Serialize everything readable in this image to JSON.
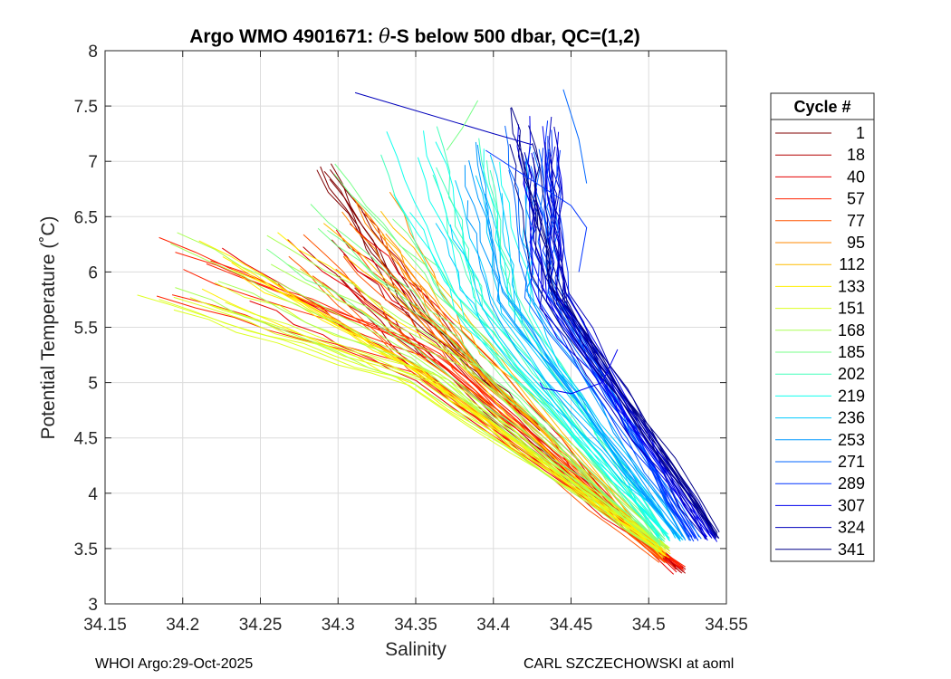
{
  "chart_data": {
    "type": "line",
    "title_prefix": "Argo WMO 4901671: ",
    "title_theta": "θ",
    "title_suffix": "-S below 500 dbar,  QC=(1,2)",
    "xlabel": "Salinity",
    "ylabel": "Potential Temperature (˚C)",
    "xlim": [
      34.15,
      34.55
    ],
    "ylim": [
      3,
      8
    ],
    "xticks": [
      "34.15",
      "34.2",
      "34.25",
      "34.3",
      "34.35",
      "34.4",
      "34.45",
      "34.5",
      "34.55"
    ],
    "xtick_values": [
      34.15,
      34.2,
      34.25,
      34.3,
      34.35,
      34.4,
      34.45,
      34.5,
      34.55
    ],
    "yticks": [
      "3",
      "3.5",
      "4",
      "4.5",
      "5",
      "5.5",
      "6",
      "6.5",
      "7",
      "7.5",
      "8"
    ],
    "ytick_values": [
      3,
      3.5,
      4,
      4.5,
      5,
      5.5,
      6,
      6.5,
      7,
      7.5,
      8
    ],
    "grid": true,
    "legend_title": "Cycle #",
    "legend_position": "right-outside",
    "legend": [
      {
        "label": "1",
        "color": "#800000"
      },
      {
        "label": "18",
        "color": "#b30000"
      },
      {
        "label": "40",
        "color": "#e60000"
      },
      {
        "label": "57",
        "color": "#ff2200"
      },
      {
        "label": "77",
        "color": "#ff5500"
      },
      {
        "label": "95",
        "color": "#ff8800"
      },
      {
        "label": "112",
        "color": "#ffbb00"
      },
      {
        "label": "133",
        "color": "#ffee00"
      },
      {
        "label": "151",
        "color": "#ddff22"
      },
      {
        "label": "168",
        "color": "#aaff55"
      },
      {
        "label": "185",
        "color": "#77ff88"
      },
      {
        "label": "202",
        "color": "#44ffbb"
      },
      {
        "label": "219",
        "color": "#11ffee"
      },
      {
        "label": "236",
        "color": "#00ccff"
      },
      {
        "label": "253",
        "color": "#0099ff"
      },
      {
        "label": "271",
        "color": "#0066ff"
      },
      {
        "label": "289",
        "color": "#0033ff"
      },
      {
        "label": "307",
        "color": "#0000ee"
      },
      {
        "label": "324",
        "color": "#0000bb"
      },
      {
        "label": "341",
        "color": "#000088"
      }
    ],
    "profile_groups": [
      {
        "cycle": "1",
        "color": "#800000",
        "count": 6,
        "top": [
          34.29,
          6.9
        ],
        "mid": [
          34.35,
          5.6
        ],
        "bottom": [
          34.43,
          4.6
        ],
        "spread_s": 0.006,
        "spread_t": 0.08
      },
      {
        "cycle": "18",
        "color": "#b30000",
        "count": 6,
        "top": [
          34.3,
          6.2
        ],
        "mid": [
          34.36,
          5.3
        ],
        "bottom": [
          34.52,
          3.3
        ],
        "spread_s": 0.04,
        "spread_t": 0.4
      },
      {
        "cycle": "40",
        "color": "#e60000",
        "count": 7,
        "top": [
          34.27,
          6.1
        ],
        "mid": [
          34.36,
          5.2
        ],
        "bottom": [
          34.52,
          3.3
        ],
        "spread_s": 0.05,
        "spread_t": 0.4
      },
      {
        "cycle": "57",
        "color": "#ff2200",
        "count": 7,
        "top": [
          34.2,
          6.0
        ],
        "mid": [
          34.36,
          5.2
        ],
        "bottom": [
          34.52,
          3.35
        ],
        "spread_s": 0.03,
        "spread_t": 0.35
      },
      {
        "cycle": "77",
        "color": "#ff5500",
        "count": 7,
        "top": [
          34.3,
          6.3
        ],
        "mid": [
          34.37,
          5.2
        ],
        "bottom": [
          34.51,
          3.4
        ],
        "spread_s": 0.04,
        "spread_t": 0.35
      },
      {
        "cycle": "95",
        "color": "#ff8800",
        "count": 7,
        "top": [
          34.31,
          6.4
        ],
        "mid": [
          34.37,
          5.3
        ],
        "bottom": [
          34.51,
          3.45
        ],
        "spread_s": 0.04,
        "spread_t": 0.35
      },
      {
        "cycle": "112",
        "color": "#ffbb00",
        "count": 7,
        "top": [
          34.28,
          6.2
        ],
        "mid": [
          34.37,
          5.2
        ],
        "bottom": [
          34.51,
          3.5
        ],
        "spread_s": 0.05,
        "spread_t": 0.35
      },
      {
        "cycle": "133",
        "color": "#ffee00",
        "count": 7,
        "top": [
          34.24,
          6.1
        ],
        "mid": [
          34.36,
          5.1
        ],
        "bottom": [
          34.51,
          3.45
        ],
        "spread_s": 0.05,
        "spread_t": 0.35
      },
      {
        "cycle": "151",
        "color": "#ddff22",
        "count": 8,
        "top": [
          34.2,
          5.9
        ],
        "mid": [
          34.35,
          5.1
        ],
        "bottom": [
          34.51,
          3.5
        ],
        "spread_s": 0.04,
        "spread_t": 0.3
      },
      {
        "cycle": "168",
        "color": "#aaff55",
        "count": 7,
        "top": [
          34.22,
          6.2
        ],
        "mid": [
          34.36,
          5.2
        ],
        "bottom": [
          34.51,
          3.5
        ],
        "spread_s": 0.05,
        "spread_t": 0.35
      },
      {
        "cycle": "185",
        "color": "#77ff88",
        "count": 7,
        "top": [
          34.3,
          6.6
        ],
        "mid": [
          34.38,
          5.5
        ],
        "bottom": [
          34.51,
          3.55
        ],
        "spread_s": 0.05,
        "spread_t": 0.4
      },
      {
        "cycle": "202",
        "color": "#44ffbb",
        "count": 7,
        "top": [
          34.36,
          7.0
        ],
        "mid": [
          34.39,
          5.7
        ],
        "bottom": [
          34.51,
          3.6
        ],
        "spread_s": 0.04,
        "spread_t": 0.4
      },
      {
        "cycle": "219",
        "color": "#11ffee",
        "count": 8,
        "top": [
          34.37,
          6.9
        ],
        "mid": [
          34.4,
          5.6
        ],
        "bottom": [
          34.51,
          3.6
        ],
        "spread_s": 0.04,
        "spread_t": 0.4
      },
      {
        "cycle": "236",
        "color": "#00ccff",
        "count": 8,
        "top": [
          34.39,
          6.8
        ],
        "mid": [
          34.41,
          5.6
        ],
        "bottom": [
          34.52,
          3.6
        ],
        "spread_s": 0.03,
        "spread_t": 0.4
      },
      {
        "cycle": "253",
        "color": "#0099ff",
        "count": 7,
        "top": [
          34.41,
          6.9
        ],
        "mid": [
          34.42,
          5.7
        ],
        "bottom": [
          34.52,
          3.6
        ],
        "spread_s": 0.03,
        "spread_t": 0.4
      },
      {
        "cycle": "271",
        "color": "#0066ff",
        "count": 7,
        "top": [
          34.42,
          7.0
        ],
        "mid": [
          34.43,
          5.8
        ],
        "bottom": [
          34.53,
          3.6
        ],
        "spread_s": 0.02,
        "spread_t": 0.4
      },
      {
        "cycle": "289",
        "color": "#0033ff",
        "count": 7,
        "top": [
          34.43,
          7.1
        ],
        "mid": [
          34.435,
          5.8
        ],
        "bottom": [
          34.53,
          3.6
        ],
        "spread_s": 0.015,
        "spread_t": 0.35
      },
      {
        "cycle": "307",
        "color": "#0000ee",
        "count": 7,
        "top": [
          34.43,
          7.2
        ],
        "mid": [
          34.435,
          5.8
        ],
        "bottom": [
          34.54,
          3.6
        ],
        "spread_s": 0.015,
        "spread_t": 0.3
      },
      {
        "cycle": "324",
        "color": "#0000bb",
        "count": 7,
        "top": [
          34.43,
          7.3
        ],
        "mid": [
          34.44,
          5.8
        ],
        "bottom": [
          34.54,
          3.6
        ],
        "spread_s": 0.01,
        "spread_t": 0.3
      },
      {
        "cycle": "341",
        "color": "#000088",
        "count": 7,
        "top": [
          34.42,
          7.2
        ],
        "mid": [
          34.44,
          5.8
        ],
        "bottom": [
          34.545,
          3.62
        ],
        "spread_s": 0.01,
        "spread_t": 0.3
      }
    ],
    "outlier_segments": [
      {
        "color": "#0000bb",
        "points": [
          [
            34.311,
            7.62
          ],
          [
            34.4,
            7.25
          ],
          [
            34.425,
            7.15
          ]
        ]
      },
      {
        "color": "#0033ff",
        "points": [
          [
            34.395,
            7.1
          ],
          [
            34.45,
            6.6
          ],
          [
            34.46,
            6.4
          ],
          [
            34.455,
            6.0
          ]
        ]
      },
      {
        "color": "#0000ee",
        "points": [
          [
            34.43,
            5.0
          ],
          [
            34.432,
            4.95
          ],
          [
            34.45,
            4.9
          ],
          [
            34.47,
            5.0
          ],
          [
            34.48,
            5.3
          ]
        ]
      },
      {
        "color": "#0066ff",
        "points": [
          [
            34.445,
            7.65
          ],
          [
            34.455,
            7.2
          ],
          [
            34.46,
            6.8
          ]
        ]
      },
      {
        "color": "#77ff88",
        "points": [
          [
            34.39,
            7.55
          ],
          [
            34.38,
            7.3
          ],
          [
            34.37,
            7.1
          ]
        ]
      }
    ]
  },
  "footer": {
    "left": "WHOI Argo:29-Oct-2025",
    "right": "CARL SZCZECHOWSKI at aoml"
  }
}
